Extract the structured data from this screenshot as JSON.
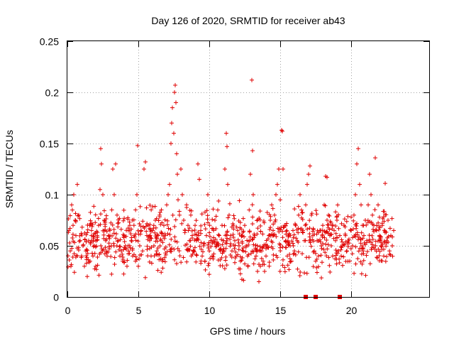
{
  "chart_data": {
    "type": "scatter",
    "title": "Day 126 of 2020, SRMTID for receiver ab43",
    "xlabel": "GPS time / hours",
    "ylabel": "SRMTID / TECUs",
    "xlim": [
      0,
      25.5
    ],
    "ylim": [
      0,
      0.25
    ],
    "xticks": [
      0,
      5,
      10,
      15,
      20
    ],
    "yticks": [
      0,
      0.05,
      0.1,
      0.15,
      0.2,
      0.25
    ],
    "xtick_labels": [
      "0",
      "5",
      "10",
      "15",
      "20"
    ],
    "ytick_labels": [
      "0",
      "0.05",
      "0.1",
      "0.15",
      "0.2",
      "0.25"
    ],
    "grid": true,
    "marker": "+",
    "color": "#e00000",
    "data_range_hours": [
      0,
      23
    ],
    "series": [
      {
        "name": "SRMTID",
        "points": [
          [
            0.1,
            0.065
          ],
          [
            0.2,
            0.045
          ],
          [
            0.25,
            0.03
          ],
          [
            0.3,
            0.09
          ],
          [
            0.35,
            0.085
          ],
          [
            0.4,
            0.07
          ],
          [
            0.45,
            0.1
          ],
          [
            0.55,
            0.075
          ],
          [
            0.6,
            0.06
          ],
          [
            0.7,
            0.11
          ],
          [
            0.8,
            0.08
          ],
          [
            0.9,
            0.055
          ],
          [
            1.0,
            0.04
          ],
          [
            1.1,
            0.05
          ],
          [
            1.2,
            0.03
          ],
          [
            1.3,
            0.045
          ],
          [
            1.4,
            0.02
          ],
          [
            1.5,
            0.055
          ],
          [
            1.6,
            0.035
          ],
          [
            1.7,
            0.065
          ],
          [
            1.8,
            0.04
          ],
          [
            1.9,
            0.05
          ],
          [
            2.0,
            0.03
          ],
          [
            2.1,
            0.06
          ],
          [
            2.2,
            0.07
          ],
          [
            2.3,
            0.105
          ],
          [
            2.35,
            0.145
          ],
          [
            2.4,
            0.13
          ],
          [
            2.5,
            0.1
          ],
          [
            2.6,
            0.075
          ],
          [
            2.7,
            0.055
          ],
          [
            2.8,
            0.04
          ],
          [
            2.9,
            0.06
          ],
          [
            3.0,
            0.065
          ],
          [
            3.1,
            0.05
          ],
          [
            3.2,
            0.125
          ],
          [
            3.3,
            0.1
          ],
          [
            3.4,
            0.13
          ],
          [
            3.5,
            0.08
          ],
          [
            3.6,
            0.055
          ],
          [
            3.7,
            0.04
          ],
          [
            3.8,
            0.045
          ],
          [
            3.9,
            0.035
          ],
          [
            4.0,
            0.06
          ],
          [
            4.1,
            0.05
          ],
          [
            4.2,
            0.03
          ],
          [
            4.3,
            0.045
          ],
          [
            4.4,
            0.07
          ],
          [
            4.5,
            0.055
          ],
          [
            4.6,
            0.04
          ],
          [
            4.7,
            0.06
          ],
          [
            4.8,
            0.035
          ],
          [
            4.9,
            0.1
          ],
          [
            4.95,
            0.148
          ],
          [
            5.0,
            0.03
          ],
          [
            5.1,
            0.05
          ],
          [
            5.2,
            0.065
          ],
          [
            5.3,
            0.045
          ],
          [
            5.4,
            0.125
          ],
          [
            5.5,
            0.132
          ],
          [
            5.6,
            0.06
          ],
          [
            5.7,
            0.07
          ],
          [
            5.8,
            0.055
          ],
          [
            5.9,
            0.04
          ],
          [
            6.0,
            0.065
          ],
          [
            6.1,
            0.05
          ],
          [
            6.2,
            0.075
          ],
          [
            6.3,
            0.045
          ],
          [
            6.4,
            0.06
          ],
          [
            6.5,
            0.08
          ],
          [
            6.6,
            0.055
          ],
          [
            6.7,
            0.035
          ],
          [
            6.8,
            0.07
          ],
          [
            6.9,
            0.06
          ],
          [
            7.0,
            0.09
          ],
          [
            7.1,
            0.1
          ],
          [
            7.2,
            0.11
          ],
          [
            7.3,
            0.15
          ],
          [
            7.35,
            0.17
          ],
          [
            7.4,
            0.185
          ],
          [
            7.5,
            0.16
          ],
          [
            7.55,
            0.2
          ],
          [
            7.6,
            0.207
          ],
          [
            7.65,
            0.19
          ],
          [
            7.7,
            0.14
          ],
          [
            7.75,
            0.12
          ],
          [
            7.8,
            0.095
          ],
          [
            7.9,
            0.08
          ],
          [
            8.0,
            0.125
          ],
          [
            8.1,
            0.1
          ],
          [
            8.2,
            0.075
          ],
          [
            8.3,
            0.065
          ],
          [
            8.4,
            0.09
          ],
          [
            8.5,
            0.07
          ],
          [
            8.6,
            0.055
          ],
          [
            8.7,
            0.08
          ],
          [
            8.8,
            0.06
          ],
          [
            8.9,
            0.045
          ],
          [
            9.0,
            0.07
          ],
          [
            9.1,
            0.055
          ],
          [
            9.2,
            0.13
          ],
          [
            9.3,
            0.115
          ],
          [
            9.4,
            0.065
          ],
          [
            9.5,
            0.04
          ],
          [
            9.6,
            0.05
          ],
          [
            9.7,
            0.035
          ],
          [
            9.8,
            0.06
          ],
          [
            9.9,
            0.1
          ],
          [
            10.0,
            0.045
          ],
          [
            10.1,
            0.055
          ],
          [
            10.2,
            0.04
          ],
          [
            10.3,
            0.065
          ],
          [
            10.4,
            0.075
          ],
          [
            10.5,
            0.05
          ],
          [
            10.6,
            0.085
          ],
          [
            10.7,
            0.06
          ],
          [
            10.8,
            0.045
          ],
          [
            10.9,
            0.07
          ],
          [
            11.0,
            0.055
          ],
          [
            11.1,
            0.125
          ],
          [
            11.2,
            0.16
          ],
          [
            11.25,
            0.147
          ],
          [
            11.3,
            0.11
          ],
          [
            11.4,
            0.08
          ],
          [
            11.5,
            0.06
          ],
          [
            11.6,
            0.045
          ],
          [
            11.7,
            0.07
          ],
          [
            11.8,
            0.055
          ],
          [
            11.9,
            0.04
          ],
          [
            12.0,
            0.065
          ],
          [
            12.1,
            0.05
          ],
          [
            12.2,
            0.035
          ],
          [
            12.3,
            0.06
          ],
          [
            12.4,
            0.045
          ],
          [
            12.5,
            0.07
          ],
          [
            12.6,
            0.05
          ],
          [
            12.7,
            0.04
          ],
          [
            12.8,
            0.055
          ],
          [
            12.9,
            0.12
          ],
          [
            13.0,
            0.212
          ],
          [
            13.05,
            0.143
          ],
          [
            13.1,
            0.1
          ],
          [
            13.2,
            0.06
          ],
          [
            13.3,
            0.04
          ],
          [
            13.4,
            0.025
          ],
          [
            13.5,
            0.015
          ],
          [
            13.6,
            0.03
          ],
          [
            13.7,
            0.045
          ],
          [
            13.8,
            0.035
          ],
          [
            13.9,
            0.025
          ],
          [
            14.0,
            0.04
          ],
          [
            14.1,
            0.05
          ],
          [
            14.2,
            0.06
          ],
          [
            14.3,
            0.075
          ],
          [
            14.4,
            0.09
          ],
          [
            14.5,
            0.065
          ],
          [
            14.6,
            0.08
          ],
          [
            14.7,
            0.1
          ],
          [
            14.8,
            0.11
          ],
          [
            14.9,
            0.125
          ],
          [
            15.0,
            0.095
          ],
          [
            15.1,
            0.163
          ],
          [
            15.15,
            0.162
          ],
          [
            15.2,
            0.125
          ],
          [
            15.3,
            0.07
          ],
          [
            15.4,
            0.055
          ],
          [
            15.5,
            0.04
          ],
          [
            15.6,
            0.06
          ],
          [
            15.7,
            0.05
          ],
          [
            15.8,
            0.035
          ],
          [
            15.9,
            0.065
          ],
          [
            16.0,
            0.045
          ],
          [
            16.1,
            0.07
          ],
          [
            16.2,
            0.055
          ],
          [
            16.3,
            0.08
          ],
          [
            16.4,
            0.1
          ],
          [
            16.5,
            0.085
          ],
          [
            16.6,
            0.065
          ],
          [
            16.7,
            0.055
          ],
          [
            16.8,
            0.09
          ],
          [
            16.9,
            0.11
          ],
          [
            17.0,
            0.12
          ],
          [
            17.1,
            0.128
          ],
          [
            17.2,
            0.08
          ],
          [
            17.3,
            0.06
          ],
          [
            17.4,
            0.045
          ],
          [
            17.5,
            0.035
          ],
          [
            17.6,
            0.055
          ],
          [
            17.7,
            0.04
          ],
          [
            17.8,
            0.065
          ],
          [
            17.9,
            0.05
          ],
          [
            18.0,
            0.07
          ],
          [
            18.1,
            0.09
          ],
          [
            18.2,
            0.118
          ],
          [
            18.3,
            0.117
          ],
          [
            18.4,
            0.08
          ],
          [
            18.5,
            0.06
          ],
          [
            18.6,
            0.05
          ],
          [
            18.7,
            0.04
          ],
          [
            18.8,
            0.065
          ],
          [
            18.9,
            0.055
          ],
          [
            19.0,
            0.075
          ],
          [
            19.1,
            0.045
          ],
          [
            19.2,
            0.06
          ],
          [
            19.3,
            0.04
          ],
          [
            19.4,
            0.05
          ],
          [
            19.5,
            0.07
          ],
          [
            19.6,
            0.06
          ],
          [
            19.7,
            0.045
          ],
          [
            19.8,
            0.055
          ],
          [
            19.9,
            0.035
          ],
          [
            20.0,
            0.065
          ],
          [
            20.1,
            0.05
          ],
          [
            20.2,
            0.08
          ],
          [
            20.3,
            0.1
          ],
          [
            20.4,
            0.13
          ],
          [
            20.5,
            0.145
          ],
          [
            20.6,
            0.11
          ],
          [
            20.7,
            0.09
          ],
          [
            20.8,
            0.07
          ],
          [
            20.9,
            0.06
          ],
          [
            21.0,
            0.075
          ],
          [
            21.1,
            0.055
          ],
          [
            21.2,
            0.09
          ],
          [
            21.3,
            0.12
          ],
          [
            21.4,
            0.1
          ],
          [
            21.5,
            0.08
          ],
          [
            21.6,
            0.07
          ],
          [
            21.7,
            0.136
          ],
          [
            21.8,
            0.065
          ],
          [
            21.9,
            0.09
          ],
          [
            22.0,
            0.06
          ],
          [
            22.1,
            0.05
          ],
          [
            22.2,
            0.07
          ],
          [
            22.3,
            0.04
          ],
          [
            22.4,
            0.111
          ],
          [
            22.5,
            0.055
          ],
          [
            22.6,
            0.075
          ],
          [
            22.7,
            0.045
          ],
          [
            22.8,
            0.06
          ],
          [
            22.9,
            0.05
          ],
          [
            23.0,
            0.065
          ]
        ]
      }
    ],
    "dense_band": {
      "description": "dense cloud of points between roughly 0.02 and 0.1",
      "x_from": 0.0,
      "x_to": 23.0,
      "y_center": 0.055,
      "y_spread": 0.025,
      "count": 900
    },
    "zero_markers": [
      16.8,
      17.5,
      19.2
    ]
  }
}
